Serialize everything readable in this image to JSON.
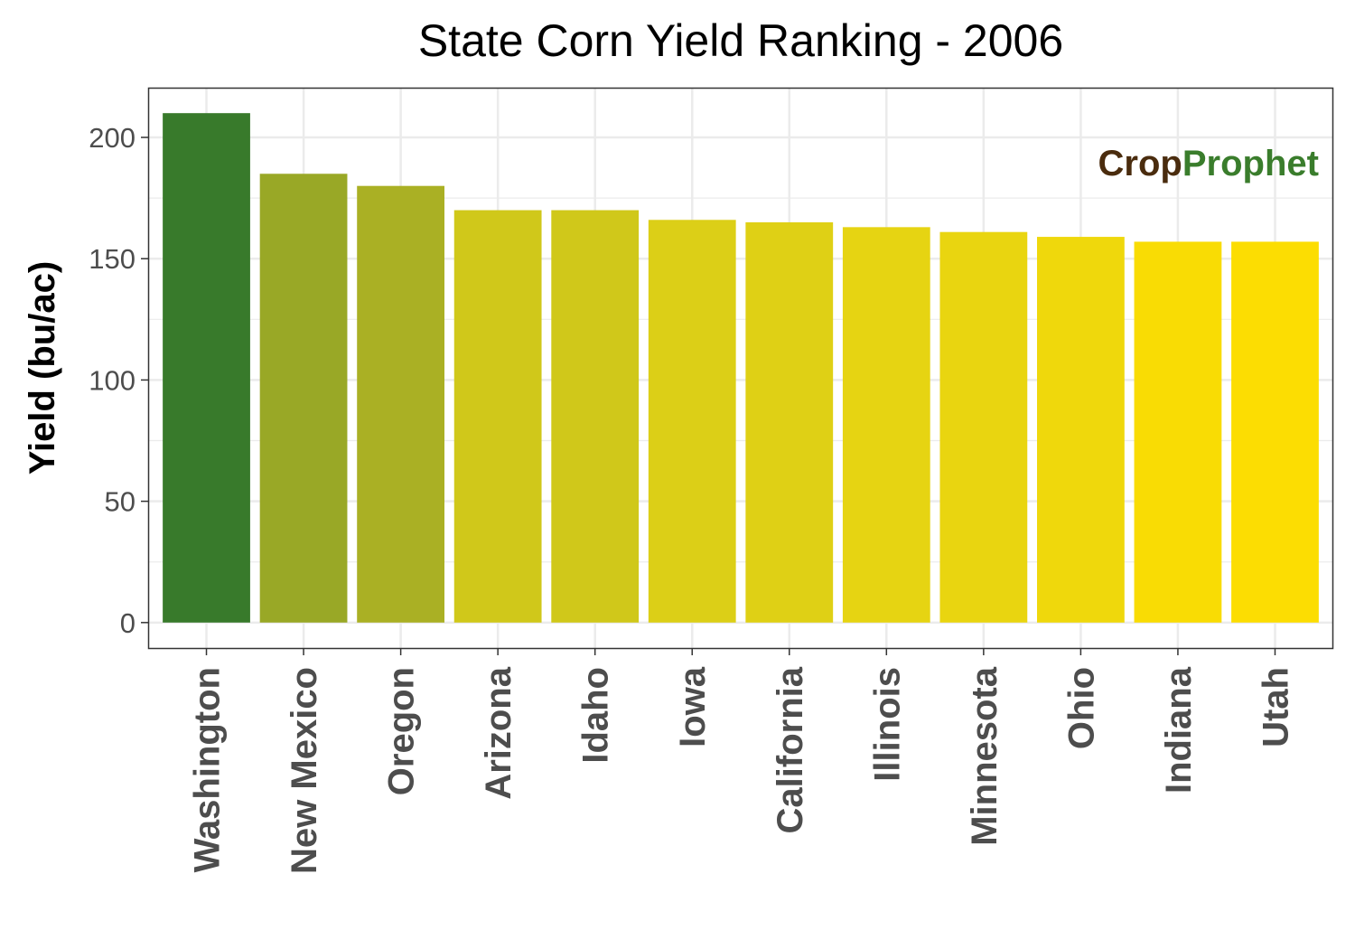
{
  "chart_data": {
    "type": "bar",
    "title": "State Corn Yield Ranking - 2006",
    "xlabel": "",
    "ylabel": "Yield (bu/ac)",
    "ylim": [
      -10.5,
      220.5
    ],
    "yticks": [
      0,
      50,
      100,
      150,
      200
    ],
    "grid": true,
    "categories": [
      "Washington",
      "New Mexico",
      "Oregon",
      "Arizona",
      "Idaho",
      "Iowa",
      "California",
      "Illinois",
      "Minnesota",
      "Ohio",
      "Indiana",
      "Utah"
    ],
    "values": [
      210,
      185,
      180,
      170,
      170,
      166,
      165,
      163,
      161,
      159,
      157,
      157
    ],
    "colors": [
      "#387a2b",
      "#99a826",
      "#aab024",
      "#d0c81a",
      "#d0c81a",
      "#dccf17",
      "#dfd015",
      "#e6d412",
      "#e9d510",
      "#efd80c",
      "#f9dc04",
      "#fcdd02"
    ]
  },
  "logo": {
    "part1": "Crop",
    "part2": "Prophet",
    "color1": "#4a2c0e",
    "color2": "#3a7d2c"
  }
}
